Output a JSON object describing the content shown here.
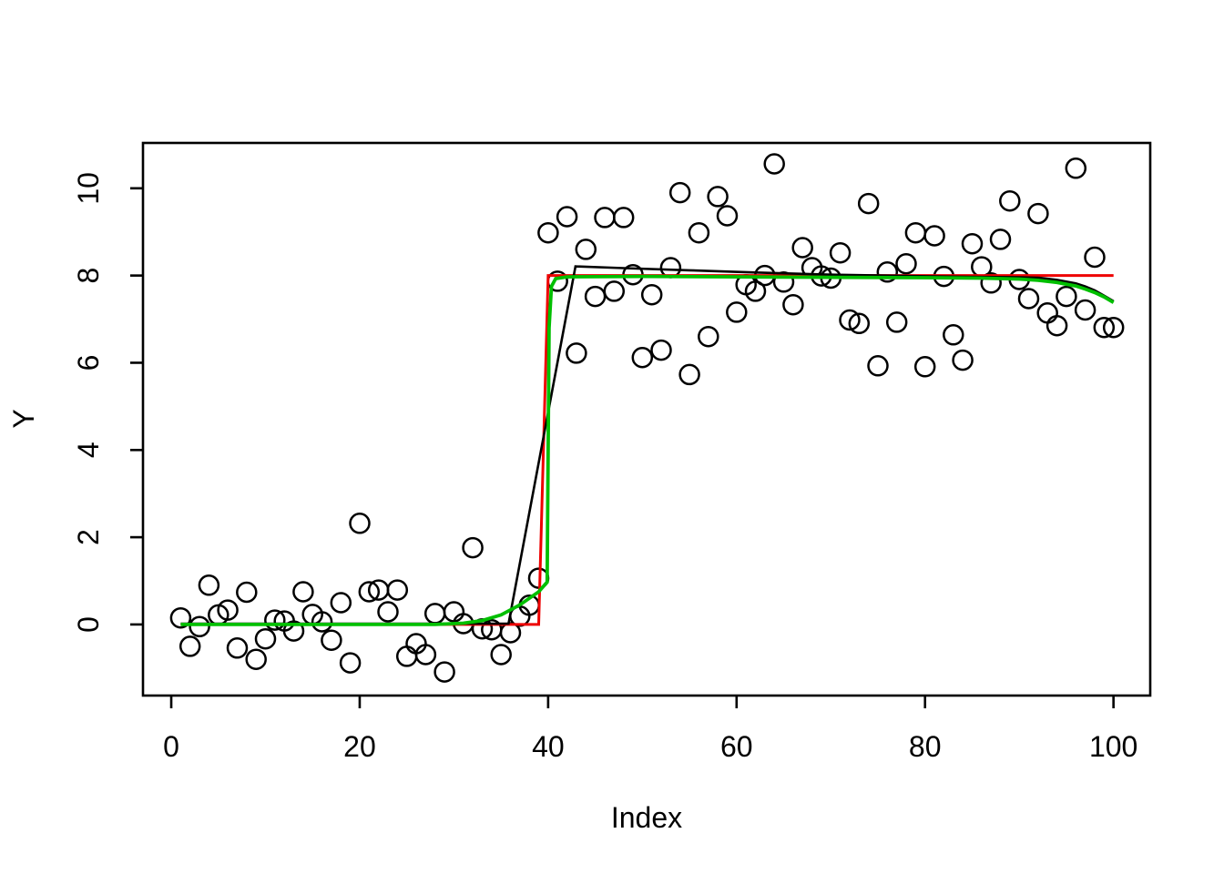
{
  "figure": {
    "background": "#ffffff",
    "description": "R base-graphics scatter plot of a noisy step function with three fitted lines"
  },
  "chart_data": {
    "type": "scatter",
    "title": "",
    "xlabel": "Index",
    "ylabel": "Y",
    "xlim": [
      -3.0,
      103.9
    ],
    "ylim": [
      -1.63,
      11.04
    ],
    "x_ticks": [
      0,
      20,
      40,
      60,
      80,
      100
    ],
    "y_ticks": [
      0,
      2,
      4,
      6,
      8,
      10
    ],
    "grid": false,
    "legend": null,
    "frame": "box",
    "point_style": {
      "shape": "open-circle",
      "color": "#000000",
      "radius": 10.5,
      "stroke_width": 2.5
    },
    "x_start": 1,
    "x_step": 1,
    "points_y": [
      0.15,
      -0.5,
      -0.05,
      0.9,
      0.22,
      0.33,
      -0.54,
      0.74,
      -0.8,
      -0.33,
      0.1,
      0.08,
      -0.15,
      0.75,
      0.23,
      0.06,
      -0.36,
      0.5,
      -0.88,
      2.32,
      0.75,
      0.79,
      0.29,
      0.79,
      -0.73,
      -0.44,
      -0.69,
      0.25,
      -1.09,
      0.29,
      0.02,
      1.76,
      -0.1,
      -0.12,
      -0.69,
      -0.19,
      0.19,
      0.44,
      1.06,
      8.98,
      7.87,
      9.35,
      6.22,
      8.6,
      7.52,
      9.33,
      7.64,
      9.33,
      8.02,
      6.12,
      7.56,
      6.29,
      8.18,
      9.9,
      5.73,
      8.98,
      6.6,
      9.81,
      9.37,
      7.16,
      7.79,
      7.64,
      8.0,
      10.56,
      7.85,
      7.33,
      8.64,
      8.18,
      7.99,
      7.94,
      8.52,
      6.98,
      6.9,
      9.65,
      5.93,
      8.08,
      6.93,
      8.27,
      8.98,
      5.91,
      8.91,
      7.98,
      6.64,
      6.06,
      8.73,
      8.2,
      7.83,
      8.83,
      9.71,
      7.91,
      7.47,
      9.42,
      7.14,
      6.85,
      7.52,
      10.46,
      7.21,
      8.42,
      6.81,
      6.81
    ],
    "lines": [
      {
        "name": "true-step-red",
        "color": "#ee0000",
        "width": 3,
        "points": [
          [
            1,
            0
          ],
          [
            39,
            0
          ],
          [
            40,
            8
          ],
          [
            100,
            8
          ]
        ]
      },
      {
        "name": "fit-line-black",
        "color": "#000000",
        "width": 2.6,
        "points": [
          [
            1,
            0.02
          ],
          [
            35.8,
            0.02
          ],
          [
            42.9,
            8.21
          ],
          [
            48,
            8.17
          ],
          [
            55,
            8.12
          ],
          [
            62,
            8.07
          ],
          [
            70,
            8.02
          ],
          [
            78,
            7.99
          ],
          [
            85,
            7.97
          ],
          [
            90,
            7.96
          ],
          [
            92,
            7.95
          ],
          [
            94,
            7.9
          ],
          [
            96,
            7.82
          ],
          [
            97,
            7.75
          ],
          [
            98,
            7.66
          ],
          [
            99,
            7.54
          ],
          [
            100,
            7.41
          ]
        ]
      },
      {
        "name": "fit-line-green",
        "color": "#00bf00",
        "width": 3.8,
        "points": [
          [
            1,
            0.0
          ],
          [
            28,
            0.0
          ],
          [
            31,
            0.03
          ],
          [
            33,
            0.09
          ],
          [
            35,
            0.22
          ],
          [
            37,
            0.45
          ],
          [
            39,
            0.75
          ],
          [
            39.9,
            0.97
          ],
          [
            40.1,
            6.8
          ],
          [
            40.35,
            7.75
          ],
          [
            40.8,
            7.93
          ],
          [
            42,
            7.97
          ],
          [
            50,
            7.98
          ],
          [
            60,
            7.97
          ],
          [
            70,
            7.96
          ],
          [
            80,
            7.95
          ],
          [
            86,
            7.94
          ],
          [
            90,
            7.92
          ],
          [
            92,
            7.89
          ],
          [
            94,
            7.84
          ],
          [
            96,
            7.76
          ],
          [
            97,
            7.69
          ],
          [
            98,
            7.61
          ],
          [
            99,
            7.51
          ],
          [
            100,
            7.38
          ]
        ]
      }
    ]
  }
}
